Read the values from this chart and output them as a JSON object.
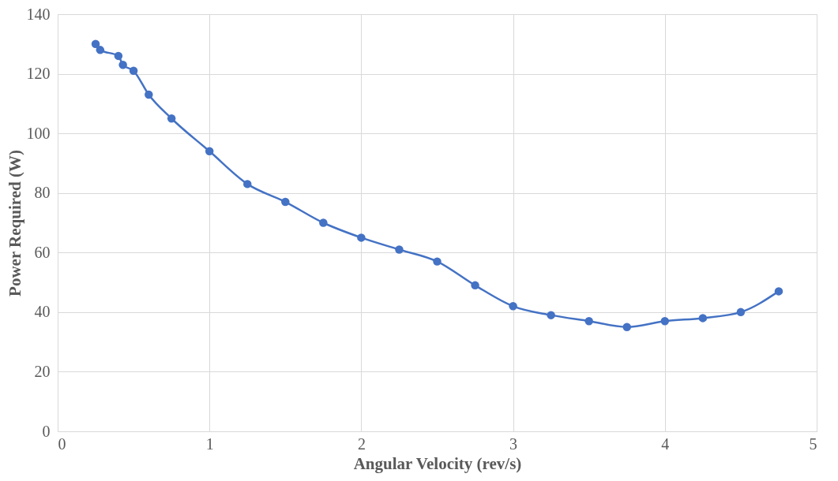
{
  "chart_data": {
    "type": "line",
    "xlabel": "Angular Velocity (rev/s)",
    "ylabel": "Power Required (W)",
    "x": [
      0.25,
      0.28,
      0.4,
      0.43,
      0.5,
      0.6,
      0.75,
      1,
      1.25,
      1.5,
      1.75,
      2,
      2.25,
      2.5,
      2.75,
      3,
      3.25,
      3.5,
      3.75,
      4,
      4.25,
      4.5,
      4.75
    ],
    "series": [
      {
        "color": "#4472c4",
        "values": [
          130,
          128,
          126,
          123,
          121,
          113,
          105,
          94,
          83,
          77,
          70,
          65,
          61,
          57,
          49,
          42,
          39,
          37,
          35,
          37,
          38,
          40,
          47
        ]
      }
    ],
    "xlim": [
      0,
      5
    ],
    "xticks": [
      0,
      1,
      2,
      3,
      4,
      5
    ],
    "ylim": [
      0,
      140
    ],
    "yticks": [
      0,
      20,
      40,
      60,
      80,
      100,
      120,
      140
    ],
    "grid": true,
    "marker": "circle",
    "line_style": "solid"
  }
}
